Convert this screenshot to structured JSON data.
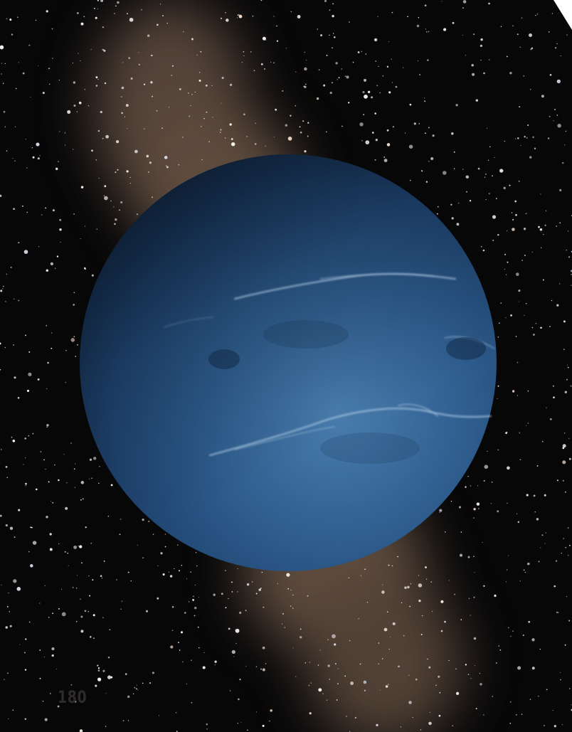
{
  "page_number": "180",
  "colors": {
    "space": "#070708",
    "planet": "#2c5988",
    "planet_light": "#4a7eaf",
    "planet_dark": "#162f4d",
    "nebula": "#7a6250",
    "page_number": "#2f2b2a"
  }
}
